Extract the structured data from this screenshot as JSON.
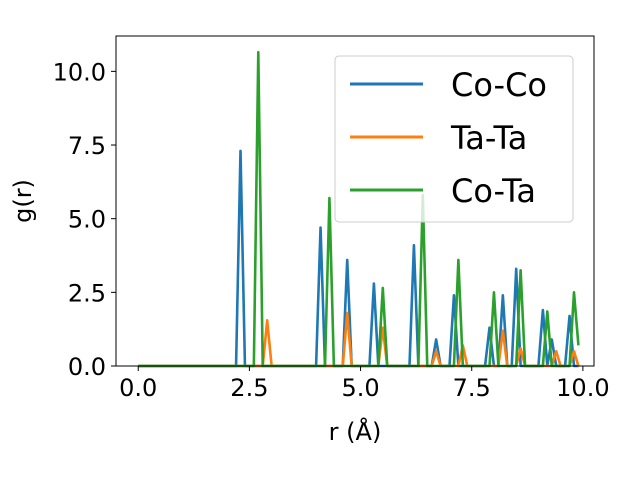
{
  "chart_data": {
    "type": "line",
    "xlabel": "r (Å)",
    "ylabel": "g(r)",
    "xlim": [
      -0.5,
      10.25
    ],
    "ylim": [
      0,
      11.2
    ],
    "xticks": [
      0.0,
      2.5,
      5.0,
      7.5,
      10.0
    ],
    "xtick_labels": [
      "0.0",
      "2.5",
      "5.0",
      "7.5",
      "10.0"
    ],
    "yticks": [
      0.0,
      2.5,
      5.0,
      7.5,
      10.0
    ],
    "ytick_labels": [
      "0.0",
      "2.5",
      "5.0",
      "7.5",
      "10.0"
    ],
    "grid": false,
    "legend_position": "upper right",
    "x": [
      0.0,
      0.1,
      0.2,
      0.3,
      0.4,
      0.5,
      0.6,
      0.7,
      0.8,
      0.9,
      1.0,
      1.1,
      1.2,
      1.3,
      1.4,
      1.5,
      1.6,
      1.7,
      1.8,
      1.9,
      2.0,
      2.1,
      2.2,
      2.3,
      2.4,
      2.5,
      2.6,
      2.7,
      2.8,
      2.9,
      3.0,
      3.1,
      3.2,
      3.3,
      3.4,
      3.5,
      3.6,
      3.7,
      3.8,
      3.9,
      4.0,
      4.1,
      4.2,
      4.3,
      4.4,
      4.5,
      4.6,
      4.7,
      4.8,
      4.9,
      5.0,
      5.1,
      5.2,
      5.3,
      5.4,
      5.5,
      5.6,
      5.7,
      5.8,
      5.9,
      6.0,
      6.1,
      6.2,
      6.3,
      6.4,
      6.5,
      6.6,
      6.7,
      6.8,
      6.9,
      7.0,
      7.1,
      7.2,
      7.3,
      7.4,
      7.5,
      7.6,
      7.7,
      7.8,
      7.9,
      8.0,
      8.1,
      8.2,
      8.3,
      8.4,
      8.5,
      8.6,
      8.7,
      8.8,
      8.9,
      9.0,
      9.1,
      9.2,
      9.3,
      9.4,
      9.5,
      9.6,
      9.7,
      9.8,
      9.9
    ],
    "series": [
      {
        "name": "Co-Co",
        "color": "#1f77b4",
        "values": [
          0,
          0,
          0,
          0,
          0,
          0,
          0,
          0,
          0,
          0,
          0,
          0,
          0,
          0,
          0,
          0,
          0,
          0,
          0,
          0,
          0,
          0,
          0,
          7.3,
          0,
          0,
          0,
          0,
          0,
          0,
          0,
          0,
          0,
          0,
          0,
          0,
          0,
          0,
          0,
          0,
          0,
          4.7,
          0,
          0,
          0,
          0,
          0,
          3.6,
          0,
          0,
          0,
          0,
          0,
          2.8,
          0,
          0,
          0,
          0,
          0,
          0,
          0,
          0,
          4.1,
          0,
          0,
          0,
          0,
          0.9,
          0,
          0,
          0,
          2.4,
          0,
          0,
          0,
          0,
          0,
          0,
          0,
          1.3,
          0,
          0,
          2.4,
          0,
          0,
          3.3,
          0,
          0,
          0,
          0,
          0,
          1.9,
          0,
          0.9,
          0,
          0,
          0,
          1.7,
          0,
          0
        ]
      },
      {
        "name": "Ta-Ta",
        "color": "#ff7f0e",
        "values": [
          0,
          0,
          0,
          0,
          0,
          0,
          0,
          0,
          0,
          0,
          0,
          0,
          0,
          0,
          0,
          0,
          0,
          0,
          0,
          0,
          0,
          0,
          0,
          0,
          0,
          0,
          0,
          0,
          0,
          1.55,
          0,
          0,
          0,
          0,
          0,
          0,
          0,
          0,
          0,
          0,
          0,
          0,
          0,
          0,
          0,
          0,
          0,
          1.8,
          0,
          0,
          0,
          0,
          0,
          0,
          0,
          1.3,
          0,
          0,
          0,
          0,
          0,
          0,
          0,
          0,
          0,
          0,
          0,
          0.5,
          0,
          0,
          0,
          0,
          0,
          0.7,
          0,
          0,
          0,
          0,
          0,
          0,
          0,
          0,
          1.2,
          0,
          0,
          0,
          0.6,
          0,
          0,
          0,
          0,
          0,
          0,
          0,
          0.5,
          0,
          0,
          0,
          0.5,
          0
        ]
      },
      {
        "name": "Co-Ta",
        "color": "#2ca02c",
        "values": [
          0,
          0,
          0,
          0,
          0,
          0,
          0,
          0,
          0,
          0,
          0,
          0,
          0,
          0,
          0,
          0,
          0,
          0,
          0,
          0,
          0,
          0,
          0,
          0,
          0,
          0,
          0,
          10.65,
          0,
          0,
          0,
          0,
          0,
          0,
          0,
          0,
          0,
          0,
          0,
          0,
          0,
          0,
          0,
          5.7,
          0,
          0,
          0,
          0,
          0,
          0,
          0,
          0,
          0,
          0,
          0,
          2.65,
          0,
          0,
          0,
          0,
          0,
          0,
          0,
          0,
          5.8,
          0,
          0,
          0,
          0,
          0,
          0,
          0,
          3.6,
          0,
          0,
          0,
          0,
          0,
          0,
          0,
          2.5,
          0,
          0,
          0,
          0,
          0,
          3.25,
          0,
          0,
          0,
          0,
          0,
          1.85,
          0,
          0,
          0,
          0,
          0,
          2.5,
          0.7
        ]
      }
    ]
  }
}
